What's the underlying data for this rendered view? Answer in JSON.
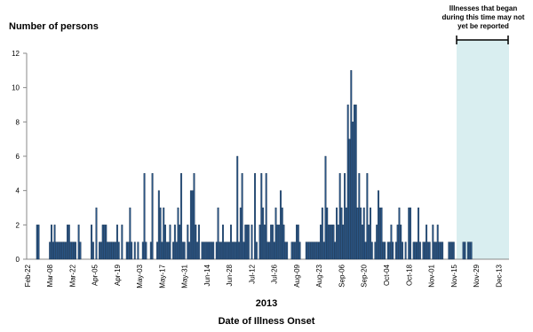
{
  "chart_data": {
    "type": "bar",
    "title": "Number of persons",
    "x_label_year": "2013",
    "x_label": "Date of Illness Onset",
    "annotation": [
      "Illnesses  that began",
      "during this time may not",
      "yet be reported"
    ],
    "color": "#2b5686",
    "ylim": [
      0,
      12
    ],
    "yticks": [
      0,
      2,
      4,
      6,
      8,
      10,
      12
    ],
    "categories": [
      "Feb-22",
      null,
      null,
      null,
      null,
      null,
      null,
      null,
      null,
      null,
      null,
      null,
      null,
      null,
      "Mar-08",
      null,
      null,
      null,
      null,
      null,
      null,
      null,
      null,
      null,
      null,
      null,
      null,
      null,
      "Mar-22",
      null,
      null,
      null,
      null,
      null,
      null,
      null,
      null,
      null,
      null,
      null,
      null,
      null,
      "Apr-05",
      null,
      null,
      null,
      null,
      null,
      null,
      null,
      null,
      null,
      null,
      null,
      null,
      null,
      "Apr-19",
      null,
      null,
      null,
      null,
      null,
      null,
      null,
      null,
      null,
      null,
      null,
      null,
      null,
      "May-03",
      null,
      null,
      null,
      null,
      null,
      null,
      null,
      null,
      null,
      null,
      null,
      null,
      null,
      "May-17",
      null,
      null,
      null,
      null,
      null,
      null,
      null,
      null,
      null,
      null,
      null,
      null,
      null,
      "May-31",
      null,
      null,
      null,
      null,
      null,
      null,
      null,
      null,
      null,
      null,
      null,
      null,
      null,
      "Jun-14",
      null,
      null,
      null,
      null,
      null,
      null,
      null,
      null,
      null,
      null,
      null,
      null,
      null,
      "Jun-28",
      null,
      null,
      null,
      null,
      null,
      null,
      null,
      null,
      null,
      null,
      null,
      null,
      null,
      "Jul-12",
      null,
      null,
      null,
      null,
      null,
      null,
      null,
      null,
      null,
      null,
      null,
      null,
      null,
      "Jul-26",
      null,
      null,
      null,
      null,
      null,
      null,
      null,
      null,
      null,
      null,
      null,
      null,
      null,
      "Aug-09",
      null,
      null,
      null,
      null,
      null,
      null,
      null,
      null,
      null,
      null,
      null,
      null,
      null,
      "Aug-23",
      null,
      null,
      null,
      null,
      null,
      null,
      null,
      null,
      null,
      null,
      null,
      null,
      null,
      "Sep-06",
      null,
      null,
      null,
      null,
      null,
      null,
      null,
      null,
      null,
      null,
      null,
      null,
      null,
      "Sep-20",
      null,
      null,
      null,
      null,
      null,
      null,
      null,
      null,
      null,
      null,
      null,
      null,
      null,
      "Oct-04",
      null,
      null,
      null,
      null,
      null,
      null,
      null,
      null,
      null,
      null,
      null,
      null,
      null,
      "Oct-18",
      null,
      null,
      null,
      null,
      null,
      null,
      null,
      null,
      null,
      null,
      null,
      null,
      null,
      "Nov-01",
      null,
      null,
      null,
      null,
      null,
      null,
      null,
      null,
      null,
      null,
      null,
      null,
      null,
      "Nov-15",
      null,
      null,
      null,
      null,
      null,
      null,
      null,
      null,
      null,
      null,
      null,
      null,
      null,
      "Nov-29",
      null,
      null,
      null,
      null,
      null,
      null,
      null,
      null,
      null,
      null,
      null,
      null,
      null,
      "Dec-13",
      null,
      null,
      null,
      null,
      null,
      null
    ],
    "values": [
      0,
      0,
      0,
      0,
      0,
      0,
      2,
      2,
      0,
      0,
      0,
      0,
      0,
      0,
      1,
      2,
      1,
      2,
      1,
      1,
      1,
      1,
      1,
      1,
      1,
      2,
      2,
      1,
      1,
      1,
      1,
      0,
      2,
      1,
      0,
      0,
      0,
      0,
      0,
      0,
      2,
      1,
      0,
      3,
      0,
      1,
      1,
      2,
      2,
      2,
      1,
      1,
      1,
      1,
      1,
      1,
      2,
      1,
      0,
      2,
      0,
      0,
      1,
      1,
      3,
      1,
      0,
      1,
      0,
      1,
      0,
      0,
      1,
      5,
      1,
      0,
      0,
      1,
      5,
      0,
      0,
      1,
      4,
      3,
      1,
      3,
      2,
      1,
      1,
      2,
      0,
      1,
      2,
      1,
      3,
      2,
      5,
      1,
      1,
      0,
      2,
      1,
      4,
      4,
      5,
      2,
      1,
      2,
      0,
      1,
      1,
      1,
      1,
      1,
      1,
      1,
      1,
      0,
      1,
      3,
      1,
      1,
      2,
      1,
      1,
      1,
      1,
      2,
      1,
      1,
      1,
      6,
      1,
      3,
      5,
      1,
      2,
      2,
      2,
      0,
      2,
      0,
      5,
      1,
      0,
      2,
      5,
      3,
      2,
      5,
      1,
      1,
      2,
      2,
      1,
      3,
      2,
      2,
      4,
      3,
      2,
      1,
      1,
      0,
      0,
      1,
      1,
      1,
      2,
      2,
      1,
      0,
      0,
      0,
      1,
      1,
      1,
      1,
      1,
      1,
      1,
      1,
      1,
      2,
      3,
      1,
      6,
      3,
      2,
      2,
      2,
      2,
      1,
      3,
      2,
      5,
      3,
      2,
      5,
      3,
      9,
      7,
      11,
      8,
      9,
      9,
      3,
      5,
      3,
      2,
      3,
      1,
      5,
      2,
      3,
      1,
      0,
      1,
      2,
      4,
      3,
      3,
      1,
      1,
      0,
      1,
      1,
      2,
      1,
      0,
      1,
      2,
      3,
      2,
      1,
      0,
      1,
      0,
      3,
      3,
      0,
      1,
      1,
      1,
      3,
      1,
      0,
      1,
      1,
      2,
      1,
      1,
      0,
      2,
      1,
      1,
      2,
      1,
      1,
      1,
      0,
      0,
      0,
      1,
      1,
      1,
      1,
      0,
      0,
      0,
      0,
      0,
      1,
      1,
      0,
      1,
      1,
      1,
      0,
      0,
      0,
      0,
      0,
      0,
      0,
      0,
      0,
      0,
      0,
      0,
      0,
      0,
      0,
      0,
      0,
      0,
      0,
      0,
      0,
      0,
      0
    ]
  }
}
